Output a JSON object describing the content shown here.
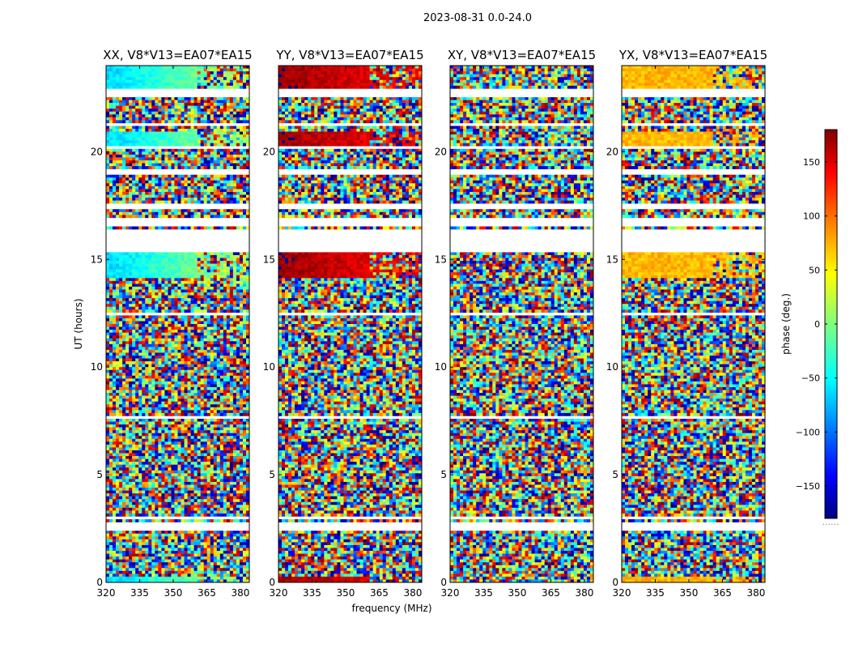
{
  "chart_data": {
    "type": "heatmap",
    "suptitle": "2023-08-31 0.0-24.0",
    "xlabel": "frequency (MHz)",
    "ylabel": "UT (hours)",
    "xlim": [
      320,
      384
    ],
    "ylim": [
      0,
      24
    ],
    "xticks": [
      320,
      335,
      350,
      365,
      380
    ],
    "yticks": [
      0,
      5,
      10,
      15,
      20
    ],
    "colorbar": {
      "label": "phase (deg.)",
      "range": [
        -180,
        180
      ],
      "ticks": [
        -150,
        -100,
        -50,
        0,
        50,
        100,
        150
      ],
      "tick_labels": [
        "−150",
        "−100",
        "−50",
        "0",
        "50",
        "100",
        "150"
      ],
      "colormap": "jet",
      "bottom_note": "......"
    },
    "panels": [
      {
        "title": "XX, V8*V13=EA07*EA15",
        "pol": "XX",
        "coherent_phase_deg": -60,
        "slope": 1.3
      },
      {
        "title": "YY, V8*V13=EA07*EA15",
        "pol": "YY",
        "coherent_phase_deg": 170,
        "slope": -0.6
      },
      {
        "title": "XY, V8*V13=EA07*EA15",
        "pol": "XY",
        "coherent_phase_deg": null,
        "slope": 0
      },
      {
        "title": "YX, V8*V13=EA07*EA15",
        "pol": "YX",
        "coherent_phase_deg": 70,
        "slope": 0
      }
    ],
    "flagged_ut_ranges": [
      [
        22.6,
        22.9
      ],
      [
        21.2,
        21.4
      ],
      [
        20.1,
        20.3
      ],
      [
        19.0,
        19.2
      ],
      [
        17.4,
        17.6
      ],
      [
        16.5,
        17.0
      ],
      [
        15.4,
        16.4
      ],
      [
        14.1,
        14.2
      ],
      [
        12.9,
        13.0
      ],
      [
        12.4,
        12.6
      ],
      [
        7.6,
        7.7
      ],
      [
        3.0,
        3.1
      ],
      [
        2.4,
        2.8
      ]
    ],
    "coherent_ut_ranges": [
      [
        20.3,
        21.0
      ],
      [
        22.9,
        24.0
      ],
      [
        14.1,
        15.4
      ],
      [
        0.0,
        0.25
      ]
    ]
  }
}
